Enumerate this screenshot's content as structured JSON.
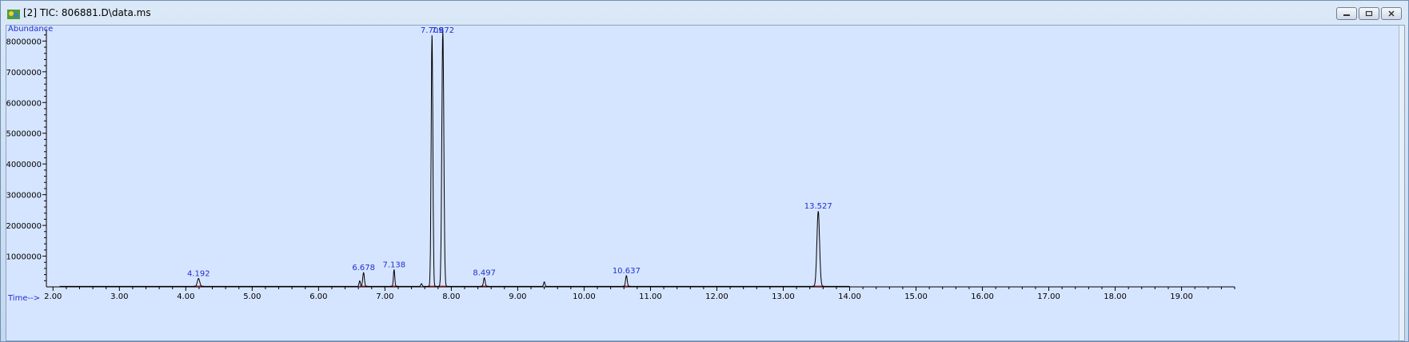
{
  "window": {
    "title": "[2] TIC: 806881.D\\data.ms",
    "icons": [
      "chromatogram-app-icon",
      "minimize-icon",
      "restore-icon",
      "close-icon"
    ]
  },
  "chart_data": {
    "type": "line",
    "ylabel": "Abundance",
    "xlabel": "Time-->",
    "xlim": [
      1.9,
      19.8
    ],
    "ylim": [
      0,
      8400000
    ],
    "x_ticks": [
      2,
      3,
      4,
      5,
      6,
      7,
      8,
      9,
      10,
      11,
      12,
      13,
      14,
      15,
      16,
      17,
      18,
      19
    ],
    "x_tick_labels": [
      "2.00",
      "3.00",
      "4.00",
      "5.00",
      "6.00",
      "7.00",
      "8.00",
      "9.00",
      "10.00",
      "11.00",
      "12.00",
      "13.00",
      "14.00",
      "15.00",
      "16.00",
      "17.00",
      "18.00",
      "19.00"
    ],
    "y_ticks": [
      1000000,
      2000000,
      3000000,
      4000000,
      5000000,
      6000000,
      7000000,
      8000000
    ],
    "y_tick_labels": [
      "1000000",
      "2000000",
      "3000000",
      "4000000",
      "5000000",
      "6000000",
      "7000000",
      "8000000"
    ],
    "peaks": [
      {
        "rt": 4.192,
        "height": 260000,
        "width": 0.035,
        "label": "4.192"
      },
      {
        "rt": 6.62,
        "height": 180000,
        "width": 0.02,
        "label": ""
      },
      {
        "rt": 6.678,
        "height": 450000,
        "width": 0.025,
        "label": "6.678"
      },
      {
        "rt": 7.138,
        "height": 550000,
        "width": 0.02,
        "label": "7.138"
      },
      {
        "rt": 7.55,
        "height": 90000,
        "width": 0.02,
        "label": ""
      },
      {
        "rt": 7.709,
        "height": 8200000,
        "width": 0.025,
        "label": "7.709"
      },
      {
        "rt": 7.872,
        "height": 8300000,
        "width": 0.03,
        "label": "7.872"
      },
      {
        "rt": 8.497,
        "height": 280000,
        "width": 0.025,
        "label": "8.497"
      },
      {
        "rt": 9.4,
        "height": 150000,
        "width": 0.02,
        "label": ""
      },
      {
        "rt": 10.637,
        "height": 350000,
        "width": 0.025,
        "label": "10.637"
      },
      {
        "rt": 13.527,
        "height": 2450000,
        "width": 0.04,
        "label": "13.527"
      }
    ],
    "grid": false,
    "legend": "none",
    "colors": {
      "trace": "#000000",
      "labels": "#1f2fd0",
      "integration": "#e0283c",
      "background": "#d6e5ff"
    }
  }
}
